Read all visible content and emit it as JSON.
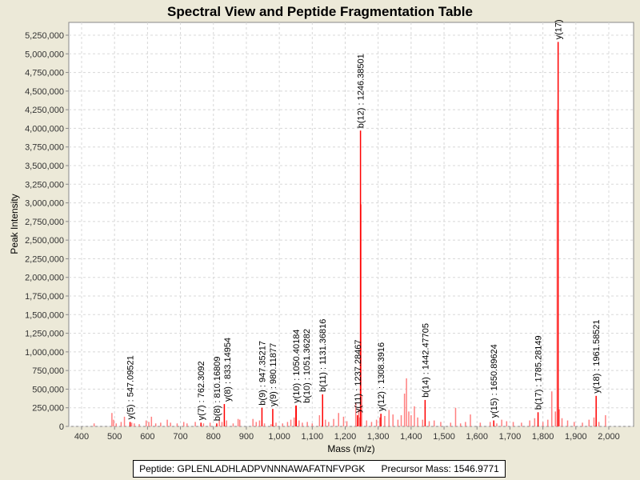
{
  "chart_data": {
    "type": "bar",
    "title": "Spectral View and Peptide Fragmentation Table",
    "xlabel": "Mass (m/z)",
    "ylabel": "Peak Intensity",
    "xlim": [
      365,
      2080
    ],
    "ylim": [
      0,
      5400000
    ],
    "x_ticks": [
      400,
      500,
      600,
      700,
      800,
      900,
      1000,
      1100,
      1200,
      1300,
      1400,
      1500,
      1600,
      1700,
      1800,
      1900,
      2000
    ],
    "x_tick_labels": [
      "400",
      "500",
      "600",
      "700",
      "800",
      "900",
      "1,000",
      "1,100",
      "1,200",
      "1,300",
      "1,400",
      "1,500",
      "1,600",
      "1,700",
      "1,800",
      "1,900",
      "2,000"
    ],
    "y_ticks": [
      0,
      250000,
      500000,
      750000,
      1000000,
      1250000,
      1500000,
      1750000,
      2000000,
      2250000,
      2500000,
      2750000,
      3000000,
      3250000,
      3500000,
      3750000,
      4000000,
      4250000,
      4500000,
      4750000,
      5000000,
      5250000
    ],
    "y_tick_labels": [
      "0",
      "250,000",
      "500,000",
      "750,000",
      "1,000,000",
      "1,250,000",
      "1,500,000",
      "1,750,000",
      "2,000,000",
      "2,250,000",
      "2,500,000",
      "2,750,000",
      "3,000,000",
      "3,250,000",
      "3,500,000",
      "3,750,000",
      "4,000,000",
      "4,250,000",
      "4,500,000",
      "4,750,000",
      "5,000,000",
      "5,250,000"
    ],
    "grid": true,
    "colors": {
      "annotated": "#ff0000",
      "unannotated": "#ff8080"
    },
    "annotated_peaks": [
      {
        "mz": 547.09521,
        "intensity": 60000,
        "label": "y(5) : 547.09521"
      },
      {
        "mz": 762.3092,
        "intensity": 50000,
        "label": "y(7) : 762.3092"
      },
      {
        "mz": 810.16809,
        "intensity": 40000,
        "label": "b(8) : 810.16809"
      },
      {
        "mz": 833.14954,
        "intensity": 300000,
        "label": "y(8) : 833.14954"
      },
      {
        "mz": 947.35217,
        "intensity": 250000,
        "label": "b(9) : 947.35217"
      },
      {
        "mz": 980.11877,
        "intensity": 235000,
        "label": "y(9) : 980.11877"
      },
      {
        "mz": 1050.40184,
        "intensity": 280000,
        "label": "y(10) : 1050.40184"
      },
      {
        "mz": 1051.36282,
        "intensity": 280000,
        "label": "b(10) : 1051.36282"
      },
      {
        "mz": 1131.36816,
        "intensity": 430000,
        "label": "b(11) : 1131.36816"
      },
      {
        "mz": 1237.28467,
        "intensity": 150000,
        "label": "y(11) : 1237.28467"
      },
      {
        "mz": 1246.38501,
        "intensity": 3970000,
        "label": "b(12) : 1246.38501"
      },
      {
        "mz": 1308.3916,
        "intensity": 170000,
        "label": "y(12) : 1308.3916"
      },
      {
        "mz": 1442.47705,
        "intensity": 355000,
        "label": "b(14) : 1442.47705"
      },
      {
        "mz": 1650.89624,
        "intensity": 80000,
        "label": "y(15) : 1650.89624"
      },
      {
        "mz": 1785.28149,
        "intensity": 190000,
        "label": "b(17) : 1785.28149"
      },
      {
        "mz": 1846.2,
        "intensity": 5160000,
        "label": "y(17)"
      },
      {
        "mz": 1961.58521,
        "intensity": 410000,
        "label": "y(18) : 1961.58521"
      }
    ],
    "other_peaks": [
      [
        438,
        40000
      ],
      [
        492,
        180000
      ],
      [
        497,
        90000
      ],
      [
        505,
        40000
      ],
      [
        520,
        60000
      ],
      [
        530,
        130000
      ],
      [
        552,
        50000
      ],
      [
        560,
        40000
      ],
      [
        575,
        30000
      ],
      [
        596,
        80000
      ],
      [
        604,
        60000
      ],
      [
        612,
        130000
      ],
      [
        625,
        40000
      ],
      [
        640,
        50000
      ],
      [
        660,
        90000
      ],
      [
        670,
        50000
      ],
      [
        690,
        40000
      ],
      [
        710,
        60000
      ],
      [
        720,
        40000
      ],
      [
        745,
        60000
      ],
      [
        770,
        40000
      ],
      [
        790,
        50000
      ],
      [
        818,
        90000
      ],
      [
        826,
        60000
      ],
      [
        840,
        80000
      ],
      [
        860,
        40000
      ],
      [
        875,
        100000
      ],
      [
        880,
        90000
      ],
      [
        920,
        100000
      ],
      [
        930,
        60000
      ],
      [
        940,
        80000
      ],
      [
        955,
        40000
      ],
      [
        975,
        30000
      ],
      [
        990,
        50000
      ],
      [
        1010,
        40000
      ],
      [
        1025,
        60000
      ],
      [
        1035,
        90000
      ],
      [
        1045,
        120000
      ],
      [
        1060,
        80000
      ],
      [
        1070,
        50000
      ],
      [
        1085,
        60000
      ],
      [
        1100,
        40000
      ],
      [
        1122,
        150000
      ],
      [
        1140,
        90000
      ],
      [
        1150,
        60000
      ],
      [
        1165,
        100000
      ],
      [
        1180,
        180000
      ],
      [
        1195,
        130000
      ],
      [
        1205,
        70000
      ],
      [
        1232,
        320000
      ],
      [
        1241,
        220000
      ],
      [
        1243,
        120000
      ],
      [
        1248,
        2980000
      ],
      [
        1250,
        400000
      ],
      [
        1265,
        80000
      ],
      [
        1280,
        60000
      ],
      [
        1295,
        90000
      ],
      [
        1305,
        120000
      ],
      [
        1320,
        140000
      ],
      [
        1333,
        220000
      ],
      [
        1345,
        160000
      ],
      [
        1360,
        90000
      ],
      [
        1370,
        150000
      ],
      [
        1380,
        440000
      ],
      [
        1386,
        645000
      ],
      [
        1393,
        200000
      ],
      [
        1400,
        150000
      ],
      [
        1410,
        270000
      ],
      [
        1420,
        120000
      ],
      [
        1435,
        90000
      ],
      [
        1455,
        70000
      ],
      [
        1470,
        80000
      ],
      [
        1490,
        60000
      ],
      [
        1520,
        50000
      ],
      [
        1535,
        250000
      ],
      [
        1550,
        40000
      ],
      [
        1565,
        60000
      ],
      [
        1580,
        160000
      ],
      [
        1610,
        50000
      ],
      [
        1640,
        60000
      ],
      [
        1660,
        40000
      ],
      [
        1675,
        90000
      ],
      [
        1690,
        70000
      ],
      [
        1710,
        60000
      ],
      [
        1735,
        50000
      ],
      [
        1760,
        80000
      ],
      [
        1775,
        110000
      ],
      [
        1800,
        60000
      ],
      [
        1815,
        90000
      ],
      [
        1827,
        470000
      ],
      [
        1838,
        200000
      ],
      [
        1843,
        4250000
      ],
      [
        1850,
        230000
      ],
      [
        1858,
        110000
      ],
      [
        1875,
        80000
      ],
      [
        1895,
        60000
      ],
      [
        1920,
        50000
      ],
      [
        1940,
        90000
      ],
      [
        1955,
        120000
      ],
      [
        1970,
        60000
      ],
      [
        1990,
        150000
      ]
    ]
  },
  "legend": {
    "peptide": "Peptide: GPLENLADHLADPVNNNAWAFATNFVPGK",
    "precursor": "Precursor Mass: 1546.9771"
  }
}
